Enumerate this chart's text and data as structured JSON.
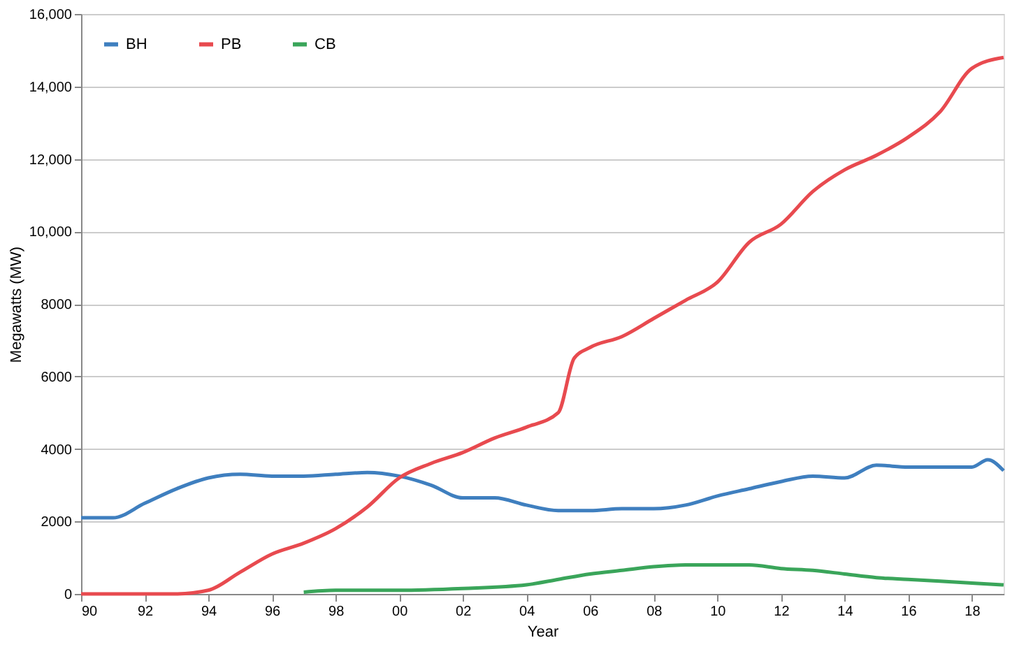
{
  "chart_data": {
    "type": "line",
    "xlabel": "Year",
    "ylabel": "Megawatts (MW)",
    "xlim": [
      1990,
      2019
    ],
    "xticks": [
      {
        "value": 1990,
        "label": "90"
      },
      {
        "value": 1992,
        "label": "92"
      },
      {
        "value": 1994,
        "label": "94"
      },
      {
        "value": 1996,
        "label": "96"
      },
      {
        "value": 1998,
        "label": "98"
      },
      {
        "value": 2000,
        "label": "00"
      },
      {
        "value": 2002,
        "label": "02"
      },
      {
        "value": 2004,
        "label": "04"
      },
      {
        "value": 2006,
        "label": "06"
      },
      {
        "value": 2008,
        "label": "08"
      },
      {
        "value": 2010,
        "label": "10"
      },
      {
        "value": 2012,
        "label": "12"
      },
      {
        "value": 2014,
        "label": "14"
      },
      {
        "value": 2016,
        "label": "16"
      },
      {
        "value": 2018,
        "label": "18"
      }
    ],
    "ylim": [
      0,
      16000
    ],
    "yticks": [
      0,
      2000,
      4000,
      6000,
      8000,
      {
        "value": 10000,
        "label": "10,000"
      },
      {
        "value": 12000,
        "label": "12,000"
      },
      {
        "value": 14000,
        "label": "14,000"
      },
      {
        "value": 16000,
        "label": "16,000"
      }
    ],
    "grid": "y",
    "legend": "top left",
    "marker": "none",
    "line_style": "solid",
    "series": [
      {
        "name": "BH",
        "color": "#3f7fbf",
        "x": [
          1990,
          1991,
          1992,
          1993,
          1994,
          1995,
          1996,
          1997,
          1998,
          1999,
          2000,
          2001,
          2002,
          2003,
          2004,
          2005,
          2006,
          2007,
          2008,
          2009,
          2010,
          2011,
          2012,
          2013,
          2014,
          2015,
          2016,
          2017,
          2018,
          2018.5,
          2019
        ],
        "values": [
          2100,
          2100,
          2500,
          2900,
          3200,
          3300,
          3250,
          3250,
          3300,
          3350,
          3250,
          3000,
          2650,
          2650,
          2450,
          2300,
          2300,
          2350,
          2350,
          2450,
          2700,
          2900,
          3100,
          3250,
          3200,
          3550,
          3500,
          3500,
          3500,
          3700,
          3400
        ]
      },
      {
        "name": "PB",
        "color": "#e84a4f",
        "x": [
          1990,
          1991,
          1992,
          1993,
          1994,
          1995,
          1996,
          1997,
          1998,
          1999,
          2000,
          2001,
          2002,
          2003,
          2004,
          2005,
          2005.5,
          2006,
          2007,
          2008,
          2009,
          2010,
          2011,
          2012,
          2013,
          2014,
          2015,
          2016,
          2017,
          2018,
          2019
        ],
        "values": [
          0,
          0,
          0,
          0,
          100,
          600,
          1100,
          1400,
          1800,
          2400,
          3200,
          3600,
          3900,
          4300,
          4600,
          5000,
          6500,
          6800,
          7100,
          7600,
          8100,
          8600,
          9700,
          10200,
          11100,
          11700,
          12100,
          12600,
          13300,
          14500,
          14800
        ]
      },
      {
        "name": "CB",
        "color": "#3aa55a",
        "x": [
          1997,
          1998,
          2000,
          2002,
          2004,
          2005,
          2006,
          2007,
          2008,
          2009,
          2010,
          2011,
          2012,
          2013,
          2014,
          2015,
          2016,
          2017,
          2018,
          2019
        ],
        "values": [
          50,
          100,
          100,
          150,
          250,
          400,
          550,
          650,
          750,
          800,
          800,
          800,
          700,
          650,
          550,
          450,
          400,
          350,
          300,
          250
        ]
      }
    ]
  }
}
